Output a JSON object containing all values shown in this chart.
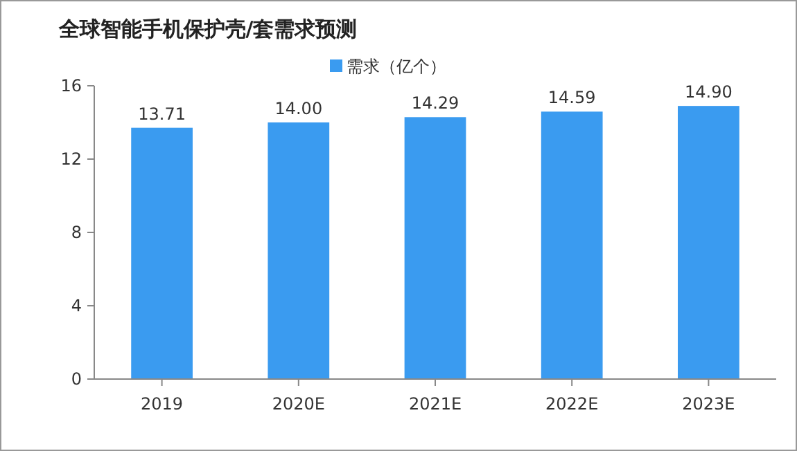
{
  "chart_data": {
    "type": "bar",
    "title": "全球智能手机保护壳/套需求预测",
    "categories": [
      "2019",
      "2020E",
      "2021E",
      "2022E",
      "2023E"
    ],
    "series": [
      {
        "name": "需求（亿个）",
        "color": "#3a9bf0",
        "values": [
          13.71,
          14.0,
          14.29,
          14.59,
          14.9
        ]
      }
    ],
    "value_labels": [
      "13.71",
      "14.00",
      "14.29",
      "14.59",
      "14.90"
    ],
    "ylim": [
      0,
      16
    ],
    "yticks": [
      0,
      4,
      8,
      12,
      16
    ],
    "grid": false,
    "legend": "top"
  }
}
